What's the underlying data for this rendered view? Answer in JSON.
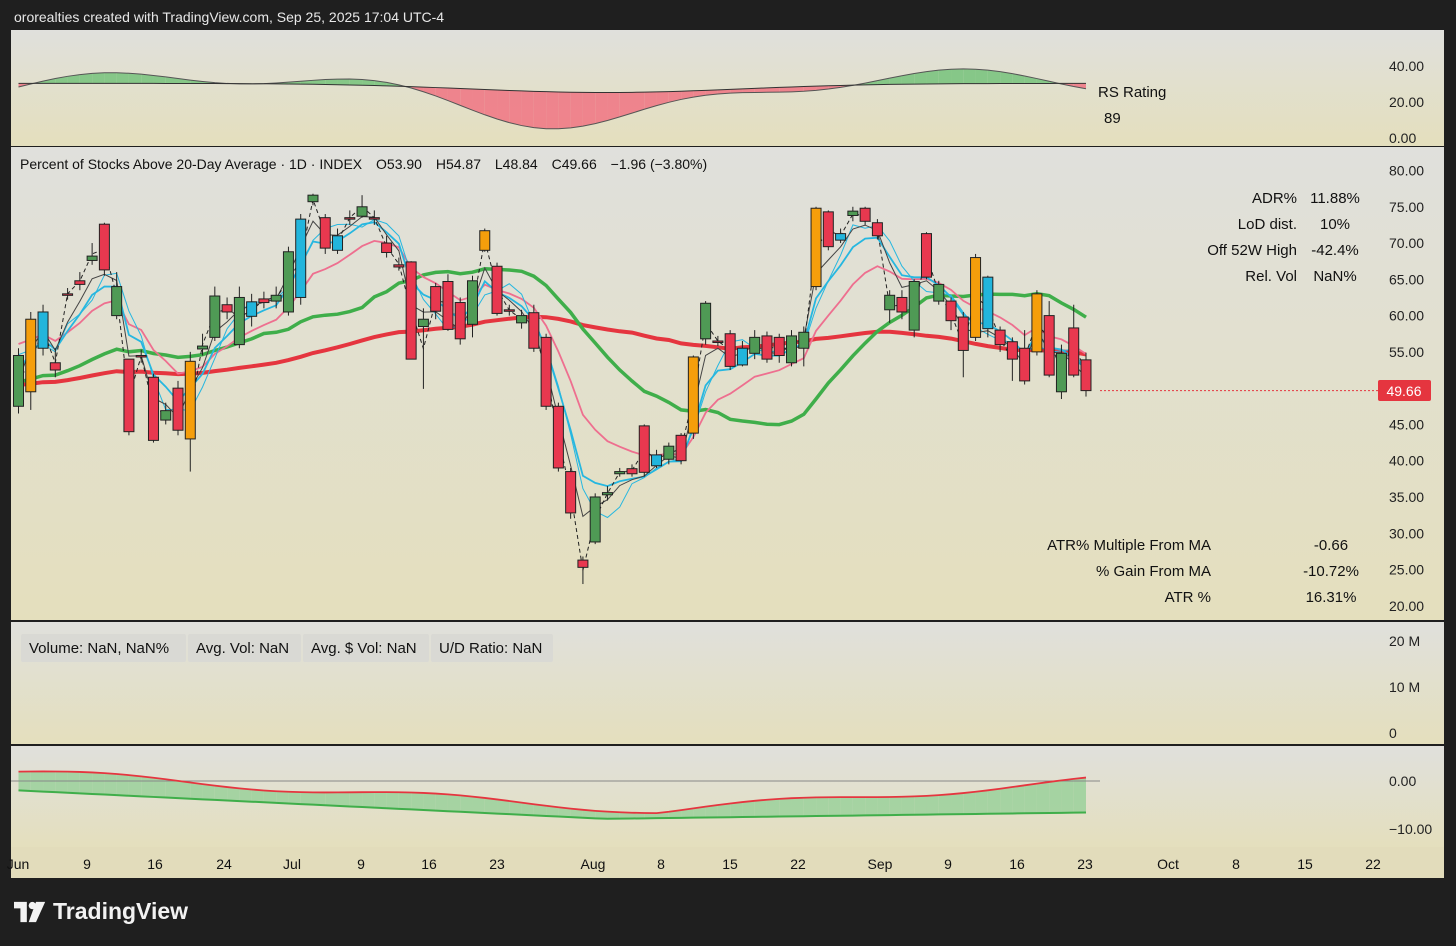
{
  "header": "ororealties created with TradingView.com, Sep 25, 2025 17:04 UTC-4",
  "brand": "TradingView",
  "chart_data": {
    "type": "candlestick",
    "title": "Percent of Stocks Above 20-Day Average · 1D · INDEX",
    "ohlc_text": [
      "O53.90",
      "H54.87",
      "L48.84",
      "C49.66",
      "−1.96 (−3.80%)"
    ],
    "last_price_label": "49.66",
    "last_price": 49.66,
    "ylim": [
      20,
      82
    ],
    "y_ticks": [
      "80.00",
      "75.00",
      "70.00",
      "65.00",
      "60.00",
      "55.00",
      "50.00",
      "45.00",
      "40.00",
      "35.00",
      "30.00",
      "25.00",
      "20.00"
    ],
    "x_ticks": [
      "Jun",
      "9",
      "16",
      "24",
      "Jul",
      "9",
      "16",
      "23",
      "Aug",
      "8",
      "15",
      "22",
      "Sep",
      "9",
      "16",
      "23",
      "Oct",
      "8",
      "15",
      "22"
    ],
    "candles": [
      [
        54.5,
        47.5,
        55.5,
        46.5,
        "green"
      ],
      [
        49.5,
        59.5,
        60.5,
        47.0,
        "orange"
      ],
      [
        55.5,
        60.5,
        61.5,
        54.5,
        "blue"
      ],
      [
        53.5,
        52.5,
        55.5,
        51.5,
        "red"
      ],
      [
        63.0,
        63.0,
        63.8,
        62.2,
        "red"
      ],
      [
        64.3,
        64.8,
        66.0,
        63.5,
        "red"
      ],
      [
        67.6,
        68.2,
        70.0,
        67.0,
        "green"
      ],
      [
        72.6,
        66.3,
        72.8,
        65.5,
        "red"
      ],
      [
        60.0,
        64.0,
        66.0,
        59.5,
        "green"
      ],
      [
        54.0,
        44.0,
        54.0,
        43.5,
        "red"
      ],
      [
        54.5,
        54.5,
        55.3,
        53.5,
        "red"
      ],
      [
        51.5,
        42.8,
        52.0,
        42.5,
        "red"
      ],
      [
        45.6,
        46.9,
        48.0,
        45.0,
        "green"
      ],
      [
        50.0,
        44.2,
        51.0,
        43.5,
        "red"
      ],
      [
        43.0,
        53.7,
        55.0,
        38.5,
        "orange"
      ],
      [
        55.4,
        55.8,
        57.5,
        54.5,
        "green"
      ],
      [
        57.0,
        62.7,
        64.0,
        56.5,
        "green"
      ],
      [
        61.5,
        60.5,
        62.5,
        59.5,
        "red"
      ],
      [
        56.0,
        62.5,
        64.0,
        55.5,
        "green"
      ],
      [
        59.9,
        61.9,
        63.0,
        58.5,
        "blue"
      ],
      [
        61.8,
        62.3,
        63.3,
        61.0,
        "red"
      ],
      [
        62.0,
        62.8,
        64.0,
        61.0,
        "green"
      ],
      [
        60.5,
        68.8,
        69.5,
        60.0,
        "green"
      ],
      [
        62.5,
        73.3,
        74.0,
        61.5,
        "blue"
      ],
      [
        75.7,
        76.6,
        76.8,
        75.2,
        "green"
      ],
      [
        73.5,
        69.3,
        74.0,
        68.5,
        "red"
      ],
      [
        69.0,
        71.0,
        72.0,
        68.5,
        "blue"
      ],
      [
        73.3,
        73.5,
        74.5,
        72.5,
        "red"
      ],
      [
        73.7,
        75.0,
        76.6,
        73.5,
        "green"
      ],
      [
        73.5,
        73.5,
        74.5,
        72.5,
        "red"
      ],
      [
        70.0,
        68.7,
        71.0,
        68.0,
        "red"
      ],
      [
        67.0,
        66.7,
        68.0,
        66.2,
        "red"
      ],
      [
        67.4,
        54.0,
        67.5,
        54.0,
        "red"
      ],
      [
        58.5,
        59.5,
        61.0,
        49.9,
        "green"
      ],
      [
        64.0,
        60.6,
        64.5,
        59.5,
        "red"
      ],
      [
        64.7,
        58.1,
        65.7,
        57.9,
        "red"
      ],
      [
        61.8,
        56.8,
        62.5,
        56.0,
        "red"
      ],
      [
        58.8,
        64.8,
        65.5,
        57.0,
        "green"
      ],
      [
        69.0,
        71.7,
        72.0,
        68.8,
        "orange"
      ],
      [
        66.8,
        60.3,
        67.3,
        60.0,
        "red"
      ],
      [
        60.8,
        60.8,
        61.5,
        60.0,
        "red"
      ],
      [
        60.0,
        59.0,
        60.8,
        58.2,
        "green"
      ],
      [
        60.4,
        55.5,
        61.5,
        55.0,
        "red"
      ],
      [
        57.0,
        47.5,
        57.5,
        47.0,
        "red"
      ],
      [
        47.5,
        39.0,
        48.0,
        38.5,
        "red"
      ],
      [
        38.5,
        32.8,
        39.0,
        32.0,
        "red"
      ],
      [
        26.3,
        25.3,
        26.8,
        23.0,
        "red"
      ],
      [
        28.8,
        35.0,
        35.5,
        28.5,
        "green"
      ],
      [
        35.3,
        35.6,
        36.5,
        34.5,
        "green"
      ],
      [
        38.2,
        38.5,
        39.0,
        37.8,
        "green"
      ],
      [
        38.9,
        38.2,
        39.5,
        37.8,
        "red"
      ],
      [
        44.8,
        38.4,
        45.0,
        37.8,
        "red"
      ],
      [
        39.3,
        40.8,
        41.5,
        39.0,
        "blue"
      ],
      [
        40.2,
        42.0,
        42.5,
        39.5,
        "green"
      ],
      [
        43.5,
        40.0,
        43.8,
        39.5,
        "red"
      ],
      [
        43.8,
        54.3,
        54.5,
        43.0,
        "orange"
      ],
      [
        56.8,
        61.7,
        62.0,
        56.0,
        "green"
      ],
      [
        56.5,
        56.5,
        57.2,
        55.8,
        "red"
      ],
      [
        57.5,
        53.0,
        58.0,
        52.5,
        "red"
      ],
      [
        53.2,
        55.5,
        56.5,
        53.0,
        "blue"
      ],
      [
        54.8,
        57.0,
        58.0,
        54.0,
        "green"
      ],
      [
        57.2,
        54.0,
        57.8,
        53.5,
        "red"
      ],
      [
        57.0,
        54.5,
        57.5,
        53.5,
        "red"
      ],
      [
        53.5,
        57.2,
        58.0,
        53.0,
        "green"
      ],
      [
        55.5,
        57.7,
        58.5,
        53.0,
        "green"
      ],
      [
        64.0,
        74.8,
        75.0,
        63.5,
        "orange"
      ],
      [
        74.3,
        69.5,
        74.5,
        69.0,
        "red"
      ],
      [
        70.4,
        71.3,
        72.0,
        70.0,
        "blue"
      ],
      [
        73.8,
        74.4,
        75.0,
        73.0,
        "green"
      ],
      [
        74.8,
        73.0,
        75.0,
        72.5,
        "red"
      ],
      [
        72.8,
        71.0,
        73.3,
        70.5,
        "red"
      ],
      [
        60.8,
        62.8,
        63.5,
        59.0,
        "green"
      ],
      [
        62.5,
        60.5,
        63.5,
        59.5,
        "red"
      ],
      [
        58.0,
        64.7,
        65.0,
        57.0,
        "green"
      ],
      [
        71.3,
        65.3,
        71.5,
        65.0,
        "red"
      ],
      [
        64.3,
        62.0,
        64.8,
        61.5,
        "green"
      ],
      [
        62.0,
        59.3,
        62.5,
        58.0,
        "red"
      ],
      [
        59.8,
        55.2,
        60.5,
        51.5,
        "red"
      ],
      [
        68.0,
        57.0,
        68.5,
        56.5,
        "orange"
      ],
      [
        65.3,
        58.2,
        65.5,
        57.0,
        "blue"
      ],
      [
        58.0,
        56.0,
        58.5,
        55.0,
        "red"
      ],
      [
        56.4,
        54.0,
        57.0,
        51.0,
        "red"
      ],
      [
        55.5,
        51.0,
        58.0,
        50.5,
        "red"
      ],
      [
        55.0,
        63.0,
        63.5,
        54.5,
        "orange"
      ],
      [
        60.0,
        51.8,
        62.0,
        51.5,
        "red"
      ],
      [
        49.5,
        54.8,
        56.0,
        48.5,
        "green"
      ],
      [
        58.3,
        51.8,
        61.5,
        51.5,
        "red"
      ],
      [
        53.9,
        49.66,
        54.87,
        48.84,
        "red"
      ]
    ],
    "rs_pane": {
      "label": "RS Rating",
      "value": "89",
      "y_ticks": [
        "40.00",
        "20.00",
        "0.00"
      ]
    },
    "volume_pane": {
      "y_ticks": [
        "20 M",
        "10 M",
        "0"
      ],
      "boxes": [
        "Volume: NaN, NaN%",
        "Avg. Vol: NaN",
        "Avg. $ Vol: NaN",
        "U/D Ratio: NaN"
      ]
    },
    "bottom_pane": {
      "y_ticks": [
        "0.00",
        "−10.00"
      ]
    },
    "stats_top": [
      [
        "ADR%",
        "11.88%"
      ],
      [
        "LoD dist.",
        "10%"
      ],
      [
        "Off 52W High",
        "-42.4%"
      ],
      [
        "Rel. Vol",
        "NaN%"
      ]
    ],
    "stats_bottom": [
      [
        "ATR% Multiple From MA",
        "-0.66"
      ],
      [
        "% Gain From MA",
        "-10.72%"
      ],
      [
        "ATR %",
        "16.31%"
      ]
    ],
    "colors": {
      "green": "#4f9a55",
      "red": "#e8384f",
      "orange": "#f59e0b",
      "blue": "#22b5dc",
      "ma_red": "#e5353f",
      "ma_green": "#3fae4a",
      "ma_blue": "#26b7e0",
      "ma_pink": "#ee6f8f"
    }
  }
}
